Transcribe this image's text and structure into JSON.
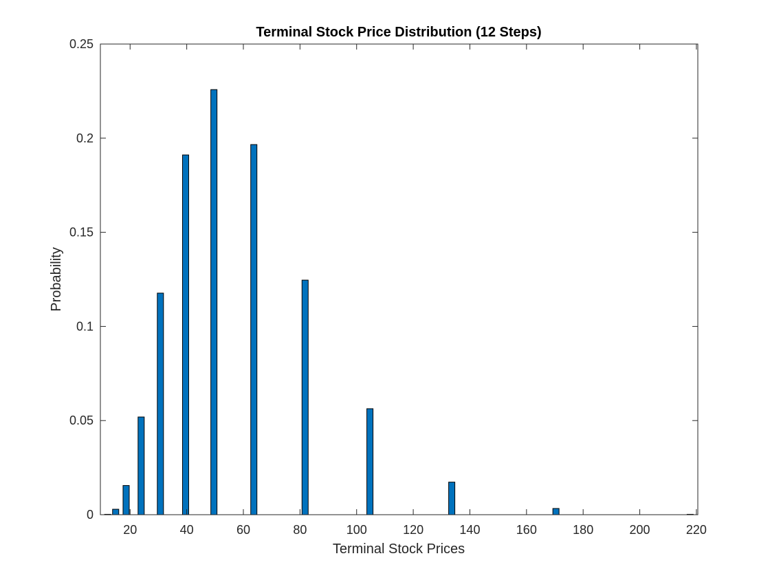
{
  "chart_data": {
    "type": "bar",
    "title": "Terminal Stock Price Distribution (12 Steps)",
    "xlabel": "Terminal Stock Prices",
    "ylabel": "Probability",
    "xlim": [
      9.5,
      220.5
    ],
    "ylim": [
      0,
      0.25
    ],
    "xticks": [
      "20",
      "40",
      "60",
      "80",
      "100",
      "120",
      "140",
      "160",
      "180",
      "200",
      "220"
    ],
    "yticks": [
      "0",
      "0.05",
      "0.1",
      "0.15",
      "0.2",
      "0.25"
    ],
    "grid": false,
    "bar_color": "#0072BD",
    "edge_color": "#000000",
    "x": [
      12.1,
      14.9,
      18.6,
      23.9,
      30.7,
      39.6,
      49.6,
      63.7,
      81.8,
      104.7,
      133.6,
      170.4,
      217.8
    ],
    "values": [
      0.0002,
      0.0029,
      0.0155,
      0.0519,
      0.1177,
      0.1911,
      0.2258,
      0.1966,
      0.1246,
      0.0563,
      0.0173,
      0.0033,
      0.0002
    ]
  }
}
